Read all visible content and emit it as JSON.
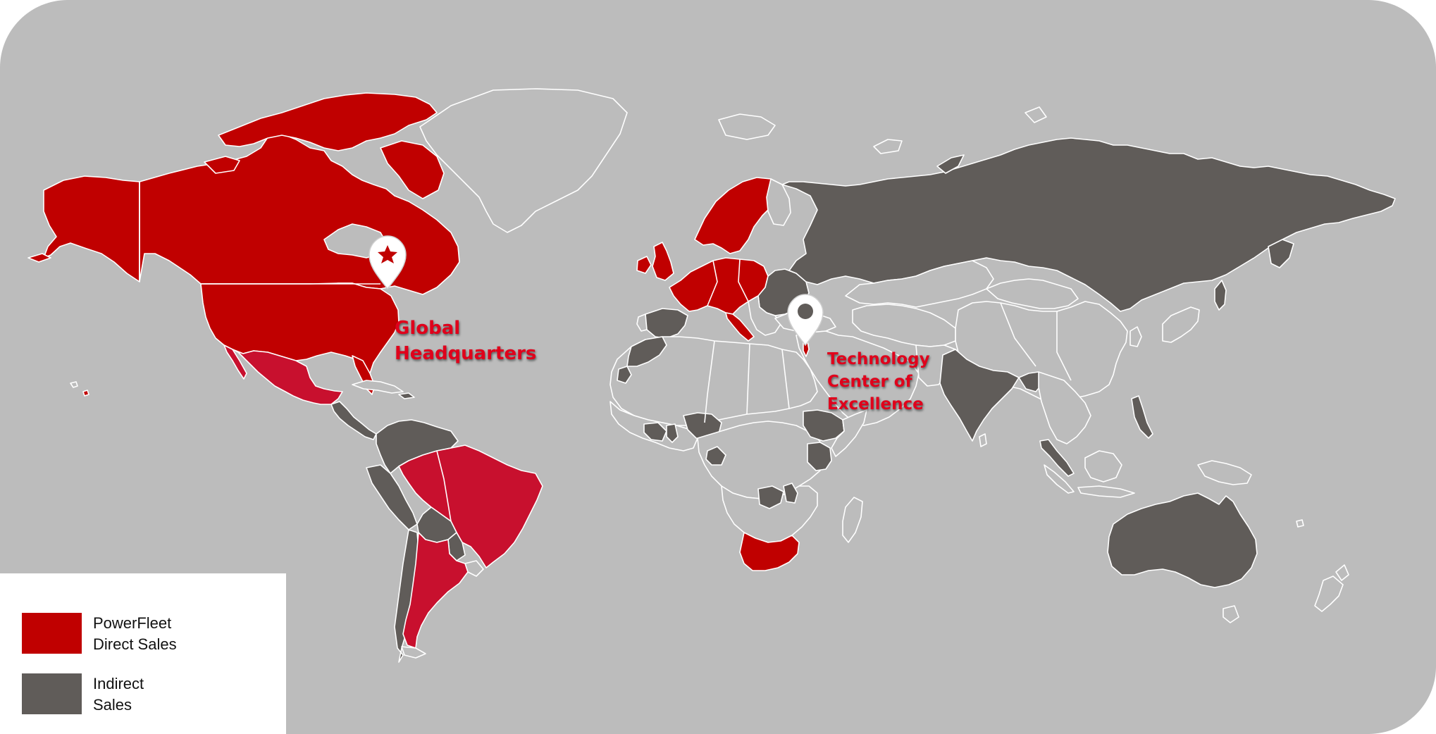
{
  "colors": {
    "background": "#bcbcbc",
    "direct_sales": "#c00000",
    "direct_sales_alt": "#c8102e",
    "indirect_sales": "#605c59",
    "borders": "#ffffff",
    "label_text": "#e0001b"
  },
  "markers": [
    {
      "name": "Global Headquarters",
      "icon": "star-pin-icon",
      "lines": [
        "Global",
        "Headquarters"
      ]
    },
    {
      "name": "Technology Center of Excellence",
      "icon": "pin-icon",
      "lines": [
        "Technology",
        "Center of",
        "Excellence"
      ]
    }
  ],
  "legend": {
    "items": [
      {
        "lines": [
          "PowerFleet",
          "Direct Sales"
        ],
        "color": "#c00000"
      },
      {
        "lines": [
          "Indirect",
          "Sales"
        ],
        "color": "#605c59"
      }
    ]
  }
}
